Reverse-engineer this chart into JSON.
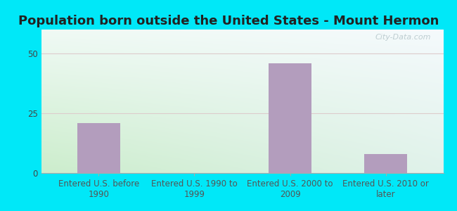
{
  "title": "Population born outside the United States - Mount Hermon",
  "categories": [
    "Entered U.S. before\n1990",
    "Entered U.S. 1990 to\n1999",
    "Entered U.S. 2000 to\n2009",
    "Entered U.S. 2010 or\nlater"
  ],
  "values": [
    21,
    0,
    46,
    8
  ],
  "bar_color": "#b39dbd",
  "ylim": [
    0,
    60
  ],
  "yticks": [
    0,
    25,
    50
  ],
  "background_outer": "#00e8f8",
  "grid_color": "#ddcccc",
  "title_fontsize": 13,
  "tick_fontsize": 8.5,
  "watermark_text": "City-Data.com",
  "watermark_color": "#b8c8cc",
  "bg_gradient_colors": [
    "#c8e8c0",
    "#f0f8f8"
  ],
  "bar_width": 0.45
}
